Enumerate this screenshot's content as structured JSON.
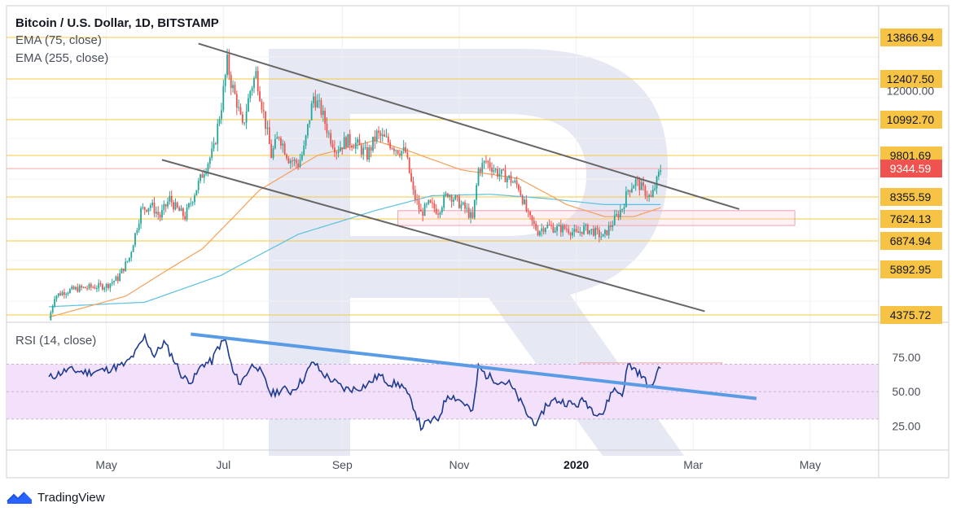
{
  "chart_data": [
    {
      "type": "candlestick",
      "title": "Bitcoin / U.S. Dollar, 1D, BITSTAMP",
      "indicators": [
        "EMA (75, close)",
        "EMA (255, close)"
      ],
      "price_levels": [
        {
          "label": "13866.94",
          "value": 13866.94
        },
        {
          "label": "12407.50",
          "value": 12407.5
        },
        {
          "label": "10992.70",
          "value": 10992.7
        },
        {
          "label": "9801.69",
          "value": 9801.69
        },
        {
          "label": "8355.59",
          "value": 8355.59
        },
        {
          "label": "7624.13",
          "value": 7624.13
        },
        {
          "label": "6874.94",
          "value": 6874.94
        },
        {
          "label": "5892.95",
          "value": 5892.95
        },
        {
          "label": "4375.72",
          "value": 4375.72
        }
      ],
      "axis_ticks": [
        {
          "label": "12000.00",
          "value": 12000
        }
      ],
      "last_price": {
        "label": "9344.59",
        "value": 9344.59
      },
      "x_labels": [
        "May",
        "Jul",
        "Sep",
        "Nov",
        "2020",
        "Mar",
        "May"
      ],
      "price_path": [
        {
          "day": 0,
          "close": 4200
        },
        {
          "day": 3,
          "close": 5000
        },
        {
          "day": 8,
          "close": 5150
        },
        {
          "day": 15,
          "close": 5250
        },
        {
          "day": 22,
          "close": 5300
        },
        {
          "day": 30,
          "close": 5350
        },
        {
          "day": 36,
          "close": 5600
        },
        {
          "day": 42,
          "close": 6300
        },
        {
          "day": 48,
          "close": 7900
        },
        {
          "day": 53,
          "close": 8100
        },
        {
          "day": 58,
          "close": 7700
        },
        {
          "day": 63,
          "close": 8300
        },
        {
          "day": 66,
          "close": 8000
        },
        {
          "day": 71,
          "close": 7700
        },
        {
          "day": 76,
          "close": 8500
        },
        {
          "day": 81,
          "close": 9300
        },
        {
          "day": 86,
          "close": 10000
        },
        {
          "day": 90,
          "close": 11500
        },
        {
          "day": 93,
          "close": 13000
        },
        {
          "day": 95,
          "close": 12300
        },
        {
          "day": 98,
          "close": 11600
        },
        {
          "day": 101,
          "close": 10700
        },
        {
          "day": 105,
          "close": 12000
        },
        {
          "day": 108,
          "close": 12600
        },
        {
          "day": 112,
          "close": 11200
        },
        {
          "day": 116,
          "close": 9800
        },
        {
          "day": 120,
          "close": 10500
        },
        {
          "day": 125,
          "close": 9700
        },
        {
          "day": 130,
          "close": 9500
        },
        {
          "day": 133,
          "close": 10000
        },
        {
          "day": 138,
          "close": 11800
        },
        {
          "day": 142,
          "close": 11300
        },
        {
          "day": 146,
          "close": 10500
        },
        {
          "day": 150,
          "close": 10000
        },
        {
          "day": 155,
          "close": 10300
        },
        {
          "day": 160,
          "close": 10200
        },
        {
          "day": 166,
          "close": 9800
        },
        {
          "day": 171,
          "close": 10500
        },
        {
          "day": 176,
          "close": 10300
        },
        {
          "day": 182,
          "close": 10000
        },
        {
          "day": 186,
          "close": 9900
        },
        {
          "day": 190,
          "close": 8500
        },
        {
          "day": 194,
          "close": 7800
        },
        {
          "day": 198,
          "close": 8100
        },
        {
          "day": 203,
          "close": 7900
        },
        {
          "day": 208,
          "close": 8500
        },
        {
          "day": 213,
          "close": 8200
        },
        {
          "day": 218,
          "close": 7900
        },
        {
          "day": 221,
          "close": 7600
        },
        {
          "day": 224,
          "close": 9300
        },
        {
          "day": 228,
          "close": 9600
        },
        {
          "day": 234,
          "close": 9200
        },
        {
          "day": 240,
          "close": 9000
        },
        {
          "day": 245,
          "close": 8700
        },
        {
          "day": 250,
          "close": 7700
        },
        {
          "day": 255,
          "close": 7200
        },
        {
          "day": 259,
          "close": 7400
        },
        {
          "day": 264,
          "close": 7300
        },
        {
          "day": 270,
          "close": 7300
        },
        {
          "day": 275,
          "close": 7100
        },
        {
          "day": 279,
          "close": 7300
        },
        {
          "day": 284,
          "close": 7200
        },
        {
          "day": 289,
          "close": 7000
        },
        {
          "day": 294,
          "close": 7500
        },
        {
          "day": 299,
          "close": 8000
        },
        {
          "day": 302,
          "close": 8600
        },
        {
          "day": 306,
          "close": 8900
        },
        {
          "day": 310,
          "close": 8600
        },
        {
          "day": 314,
          "close": 8300
        },
        {
          "day": 317,
          "close": 8900
        },
        {
          "day": 319,
          "close": 9344
        }
      ],
      "ema75_path": [
        {
          "day": 0,
          "close": 4300
        },
        {
          "day": 40,
          "close": 5000
        },
        {
          "day": 80,
          "close": 6600
        },
        {
          "day": 110,
          "close": 8600
        },
        {
          "day": 140,
          "close": 9800
        },
        {
          "day": 170,
          "close": 10300
        },
        {
          "day": 190,
          "close": 9900
        },
        {
          "day": 215,
          "close": 9300
        },
        {
          "day": 245,
          "close": 9000
        },
        {
          "day": 270,
          "close": 8100
        },
        {
          "day": 290,
          "close": 7700
        },
        {
          "day": 305,
          "close": 7700
        },
        {
          "day": 319,
          "close": 8000
        }
      ],
      "ema255_path": [
        {
          "day": 0,
          "close": 4650
        },
        {
          "day": 50,
          "close": 4800
        },
        {
          "day": 90,
          "close": 5700
        },
        {
          "day": 130,
          "close": 7100
        },
        {
          "day": 170,
          "close": 7900
        },
        {
          "day": 200,
          "close": 8400
        },
        {
          "day": 230,
          "close": 8450
        },
        {
          "day": 260,
          "close": 8300
        },
        {
          "day": 290,
          "close": 8100
        },
        {
          "day": 319,
          "close": 8100
        }
      ],
      "channel_upper": [
        {
          "day": 78,
          "price": 13650
        },
        {
          "day": 360,
          "price": 7950
        }
      ],
      "channel_lower": [
        {
          "day": 59,
          "price": 9650
        },
        {
          "day": 342,
          "price": 4500
        }
      ],
      "target_zone": {
        "day_from": 182,
        "day_to": 389,
        "price_high": 7900,
        "price_low": 7400
      },
      "ylim": [
        4100,
        14400
      ]
    },
    {
      "type": "line",
      "title": "RSI (14, close)",
      "y_ticks": [
        {
          "label": "75.00",
          "value": 75
        },
        {
          "label": "50.00",
          "value": 50
        },
        {
          "label": "25.00",
          "value": 25
        }
      ],
      "band": [
        30,
        70
      ],
      "values_path": [
        {
          "day": 0,
          "v": 60
        },
        {
          "day": 10,
          "v": 66
        },
        {
          "day": 20,
          "v": 64
        },
        {
          "day": 30,
          "v": 66
        },
        {
          "day": 40,
          "v": 70
        },
        {
          "day": 45,
          "v": 78
        },
        {
          "day": 50,
          "v": 90
        },
        {
          "day": 55,
          "v": 76
        },
        {
          "day": 60,
          "v": 86
        },
        {
          "day": 65,
          "v": 74
        },
        {
          "day": 70,
          "v": 60
        },
        {
          "day": 75,
          "v": 58
        },
        {
          "day": 80,
          "v": 70
        },
        {
          "day": 85,
          "v": 72
        },
        {
          "day": 88,
          "v": 82
        },
        {
          "day": 92,
          "v": 88
        },
        {
          "day": 96,
          "v": 64
        },
        {
          "day": 100,
          "v": 56
        },
        {
          "day": 105,
          "v": 68
        },
        {
          "day": 108,
          "v": 70
        },
        {
          "day": 112,
          "v": 60
        },
        {
          "day": 116,
          "v": 48
        },
        {
          "day": 122,
          "v": 52
        },
        {
          "day": 126,
          "v": 50
        },
        {
          "day": 132,
          "v": 58
        },
        {
          "day": 138,
          "v": 72
        },
        {
          "day": 142,
          "v": 64
        },
        {
          "day": 148,
          "v": 58
        },
        {
          "day": 154,
          "v": 52
        },
        {
          "day": 160,
          "v": 52
        },
        {
          "day": 166,
          "v": 55
        },
        {
          "day": 172,
          "v": 62
        },
        {
          "day": 178,
          "v": 56
        },
        {
          "day": 184,
          "v": 55
        },
        {
          "day": 190,
          "v": 40
        },
        {
          "day": 194,
          "v": 24
        },
        {
          "day": 198,
          "v": 28
        },
        {
          "day": 203,
          "v": 30
        },
        {
          "day": 208,
          "v": 48
        },
        {
          "day": 213,
          "v": 45
        },
        {
          "day": 218,
          "v": 40
        },
        {
          "day": 221,
          "v": 34
        },
        {
          "day": 224,
          "v": 68
        },
        {
          "day": 228,
          "v": 62
        },
        {
          "day": 234,
          "v": 58
        },
        {
          "day": 240,
          "v": 56
        },
        {
          "day": 245,
          "v": 45
        },
        {
          "day": 250,
          "v": 32
        },
        {
          "day": 255,
          "v": 26
        },
        {
          "day": 259,
          "v": 40
        },
        {
          "day": 264,
          "v": 44
        },
        {
          "day": 270,
          "v": 42
        },
        {
          "day": 275,
          "v": 40
        },
        {
          "day": 279,
          "v": 44
        },
        {
          "day": 284,
          "v": 36
        },
        {
          "day": 289,
          "v": 34
        },
        {
          "day": 294,
          "v": 52
        },
        {
          "day": 299,
          "v": 48
        },
        {
          "day": 302,
          "v": 70
        },
        {
          "day": 306,
          "v": 66
        },
        {
          "day": 310,
          "v": 60
        },
        {
          "day": 314,
          "v": 52
        },
        {
          "day": 317,
          "v": 64
        },
        {
          "day": 319,
          "v": 70
        }
      ],
      "trendline": [
        {
          "day": 74,
          "v": 92
        },
        {
          "day": 369,
          "v": 45
        }
      ],
      "target_zone": {
        "day_from": 277,
        "day_to": 351,
        "v_high": 71,
        "v_low": 44
      },
      "ylim": [
        8,
        100
      ]
    }
  ],
  "footer": {
    "brand": "TradingView"
  },
  "colors": {
    "up": "#26a69a",
    "down": "#ef5350",
    "ema75": "#f5a05a",
    "ema255": "#5bc0de",
    "level": "#f5c842",
    "label_bg": "#f6c344",
    "last_bg": "#ef5350",
    "rsi": "#1d3a8f",
    "rsi_band": "#f3e0fa",
    "trend": "#5a9be6",
    "channel": "#666666"
  }
}
